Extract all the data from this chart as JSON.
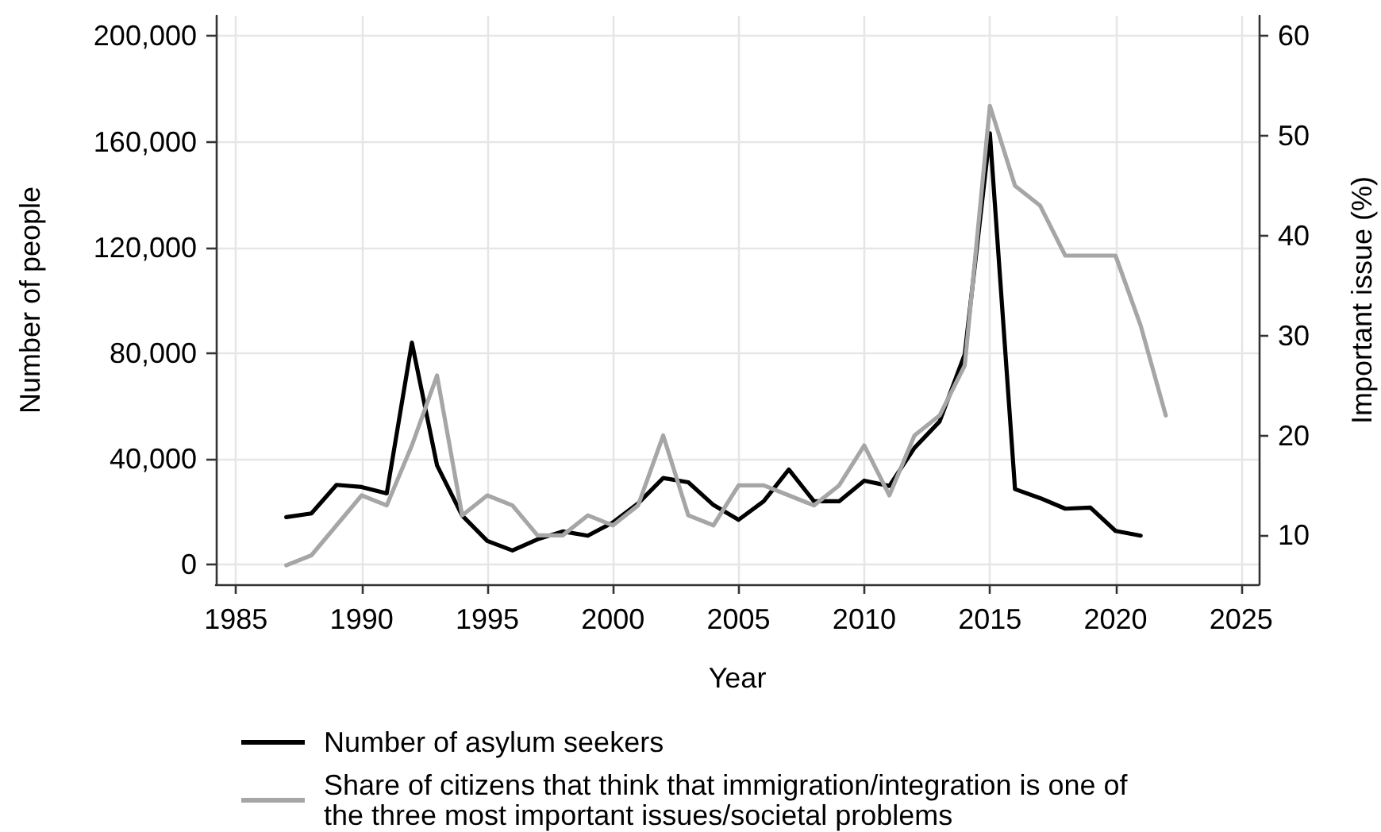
{
  "chart_data": {
    "type": "line",
    "xlabel": "Year",
    "ylabel": "Number of people",
    "y2label": "Important issue (%)",
    "x": [
      1987,
      1988,
      1989,
      1990,
      1991,
      1992,
      1993,
      1994,
      1995,
      1996,
      1997,
      1998,
      1999,
      2000,
      2001,
      2002,
      2003,
      2004,
      2005,
      2006,
      2007,
      2008,
      2009,
      2010,
      2011,
      2012,
      2013,
      2014,
      2015,
      2016,
      2017,
      2018,
      2019,
      2020,
      2021,
      2022
    ],
    "series": [
      {
        "name": "Number of asylum seekers",
        "color": "#000000",
        "values": [
          18000,
          19400,
          30200,
          29400,
          27000,
          84000,
          37600,
          18600,
          9000,
          5400,
          9600,
          12600,
          11000,
          16000,
          23200,
          32800,
          31200,
          22600,
          17000,
          24000,
          36000,
          24000,
          24000,
          31800,
          29800,
          44200,
          54200,
          79600,
          163200,
          28600,
          25200,
          21200,
          21600,
          12800,
          11000,
          null
        ]
      },
      {
        "name": "Share of citizens that think that immigration/integration is one of the three most important issues/societal problems",
        "color": "#a6a6a6",
        "axis": "y2",
        "values": [
          7,
          8,
          11,
          14,
          13,
          19,
          26,
          12,
          14,
          13,
          10,
          10,
          12,
          11,
          13,
          20,
          12,
          11,
          15,
          15,
          14,
          13,
          15,
          19,
          14,
          20,
          22,
          27,
          53,
          45,
          43,
          38,
          38,
          38,
          31,
          22
        ]
      }
    ],
    "xlim": [
      1984.2,
      2025.7
    ],
    "xticks": [
      1985,
      1990,
      1995,
      2000,
      2005,
      2010,
      2015,
      2020,
      2025
    ],
    "ylim": [
      -7400,
      207600
    ],
    "yticks": [
      0,
      {
        "value": 40000,
        "label": "40,000"
      },
      {
        "value": 80000,
        "label": "80,000"
      },
      {
        "value": 120000,
        "label": "120,000"
      },
      {
        "value": 160000,
        "label": "160,000"
      },
      {
        "value": 200000,
        "label": "200,000"
      }
    ],
    "y2lim": [
      5.1,
      62
    ],
    "y2ticks": [
      10,
      20,
      30,
      40,
      50,
      60
    ],
    "grid": true,
    "legend": "bottom",
    "marker": "none",
    "line_style": "solid"
  }
}
